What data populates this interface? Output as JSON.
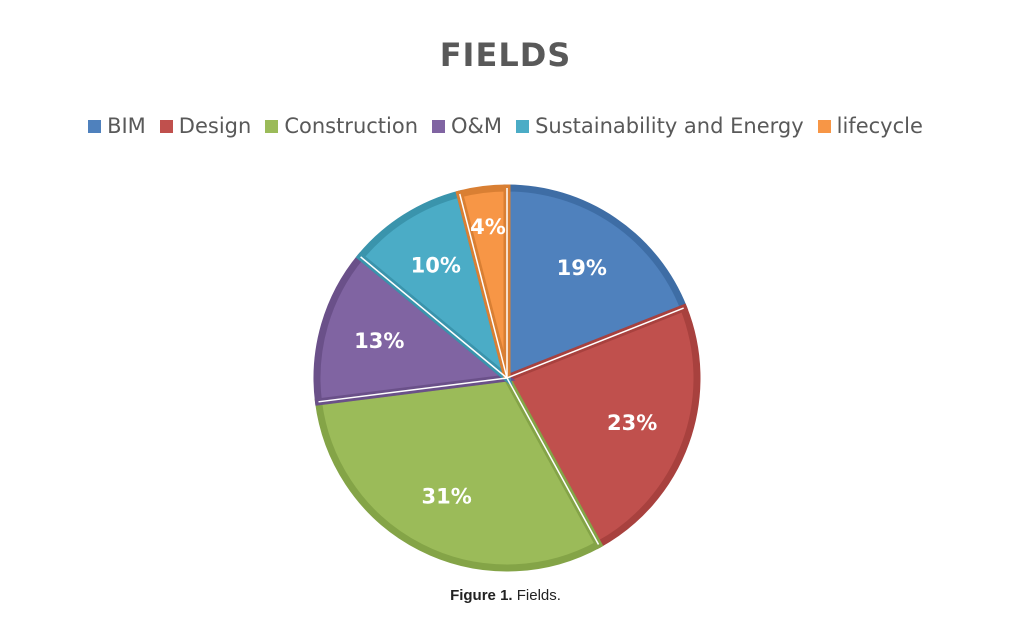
{
  "chart_data": {
    "type": "pie",
    "title": "FIELDS",
    "legend_position": "top",
    "categories": [
      "BIM",
      "Design",
      "Construction",
      "O&M",
      "Sustainability and Energy",
      "lifecycle"
    ],
    "values": [
      19,
      23,
      31,
      13,
      10,
      4
    ],
    "data_labels": [
      "19%",
      "23%",
      "31%",
      "13%",
      "10%",
      "4%"
    ],
    "colors": [
      "#4F81BD",
      "#C0504D",
      "#9BBB59",
      "#8064A2",
      "#4BACC6",
      "#F79646"
    ],
    "border_colors": [
      "#3E6DA5",
      "#A8413E",
      "#84A447",
      "#6A5089",
      "#3A94AC",
      "#D97F33"
    ]
  },
  "caption": {
    "label": "Figure 1.",
    "text": "Fields."
  }
}
